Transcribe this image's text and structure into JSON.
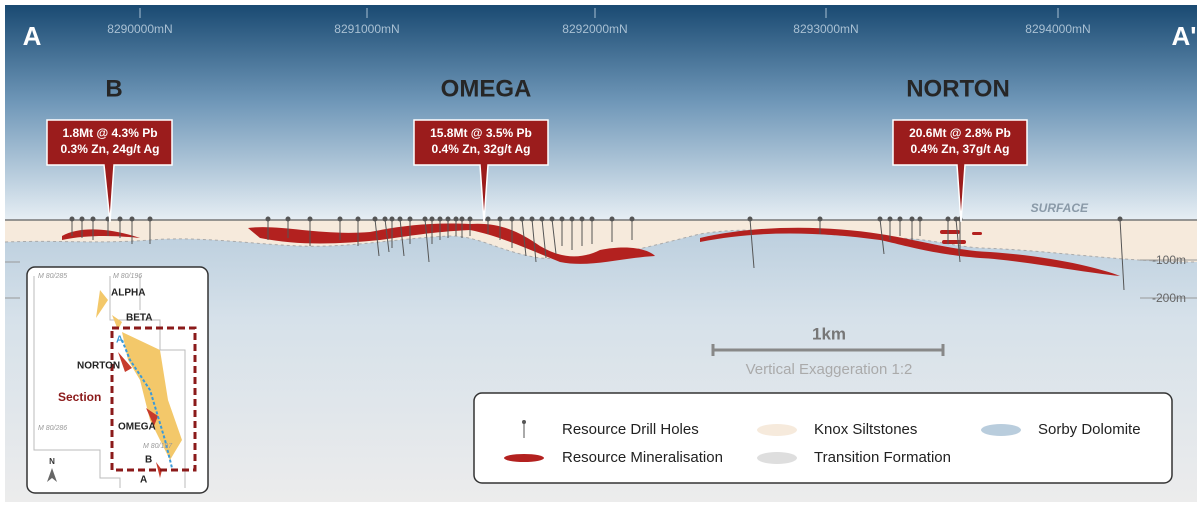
{
  "corners": {
    "left": "A",
    "right": "A'"
  },
  "northings": [
    "8290000mN",
    "8291000mN",
    "8292000mN",
    "8293000mN",
    "8294000mN"
  ],
  "deposits": [
    {
      "name": "B",
      "line1": "1.8Mt @ 4.3% Pb",
      "line2": "0.3% Zn, 24g/t Ag"
    },
    {
      "name": "OMEGA",
      "line1": "15.8Mt @ 3.5% Pb",
      "line2": "0.4% Zn, 32g/t Ag"
    },
    {
      "name": "NORTON",
      "line1": "20.6Mt @ 2.8% Pb",
      "line2": "0.4% Zn, 37g/t Ag"
    }
  ],
  "surface_label": "SURFACE",
  "depth_labels": [
    "-100m",
    "-200m"
  ],
  "scale_bar": {
    "label": "1km",
    "exaggeration": "Vertical Exaggeration 1:2"
  },
  "legend": [
    "Resource Drill Holes",
    "Resource Mineralisation",
    "Knox Siltstones",
    "Transition Formation",
    "Sorby Dolomite"
  ],
  "inset": {
    "tenements": [
      "M 80/285",
      "M 80/196",
      "M 80/286",
      "M 80/197"
    ],
    "deposits": [
      "ALPHA",
      "BETA",
      "NORTON",
      "OMEGA",
      "B"
    ],
    "section": "Section",
    "section_ends": [
      "A",
      "A"
    ],
    "north": "N"
  }
}
